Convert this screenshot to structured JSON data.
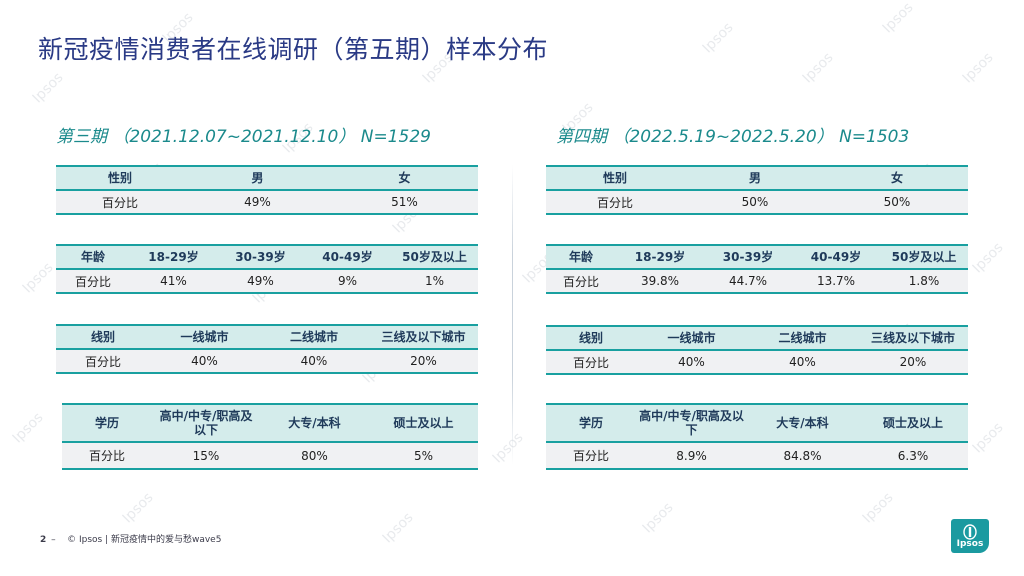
{
  "title": "新冠疫情消费者在线调研（第五期）样本分布",
  "left": {
    "heading": "第三期 （2021.12.07~2021.12.10） N=1529",
    "gender": {
      "headers": [
        "性别",
        "男",
        "女"
      ],
      "row": [
        "百分比",
        "49%",
        "51%"
      ]
    },
    "age": {
      "headers": [
        "年龄",
        "18-29岁",
        "30-39岁",
        "40-49岁",
        "50岁及以上"
      ],
      "row": [
        "百分比",
        "41%",
        "49%",
        "9%",
        "1%"
      ]
    },
    "city": {
      "headers": [
        "线别",
        "一线城市",
        "二线城市",
        "三线及以下城市"
      ],
      "row": [
        "百分比",
        "40%",
        "40%",
        "20%"
      ]
    },
    "edu": {
      "headers": [
        "学历",
        "高中/中专/职高及以下",
        "大专/本科",
        "硕士及以上"
      ],
      "row": [
        "百分比",
        "15%",
        "80%",
        "5%"
      ]
    }
  },
  "right": {
    "heading": "第四期 （2022.5.19~2022.5.20） N=1503",
    "gender": {
      "headers": [
        "性别",
        "男",
        "女"
      ],
      "row": [
        "百分比",
        "50%",
        "50%"
      ]
    },
    "age": {
      "headers": [
        "年龄",
        "18-29岁",
        "30-39岁",
        "40-49岁",
        "50岁及以上"
      ],
      "row": [
        "百分比",
        "39.8%",
        "44.7%",
        "13.7%",
        "1.8%"
      ]
    },
    "city": {
      "headers": [
        "线别",
        "一线城市",
        "二线城市",
        "三线及以下城市"
      ],
      "row": [
        "百分比",
        "40%",
        "40%",
        "20%"
      ]
    },
    "edu": {
      "headers": [
        "学历",
        "高中/中专/职高及以下",
        "大专/本科",
        "硕士及以上"
      ],
      "row": [
        "百分比",
        "8.9%",
        "84.8%",
        "6.3%"
      ]
    }
  },
  "footer": {
    "page": "2",
    "dash": "–",
    "copyright": "© Ipsos | 新冠疫情中的爱与愁wave5"
  },
  "logo": {
    "text": "Ipsos"
  },
  "watermark": "Ipsos",
  "colors": {
    "title": "#2a3a85",
    "accent": "#19a0a0",
    "header_bg": "#d4eceb",
    "cell_bg": "#f0f1f3"
  }
}
